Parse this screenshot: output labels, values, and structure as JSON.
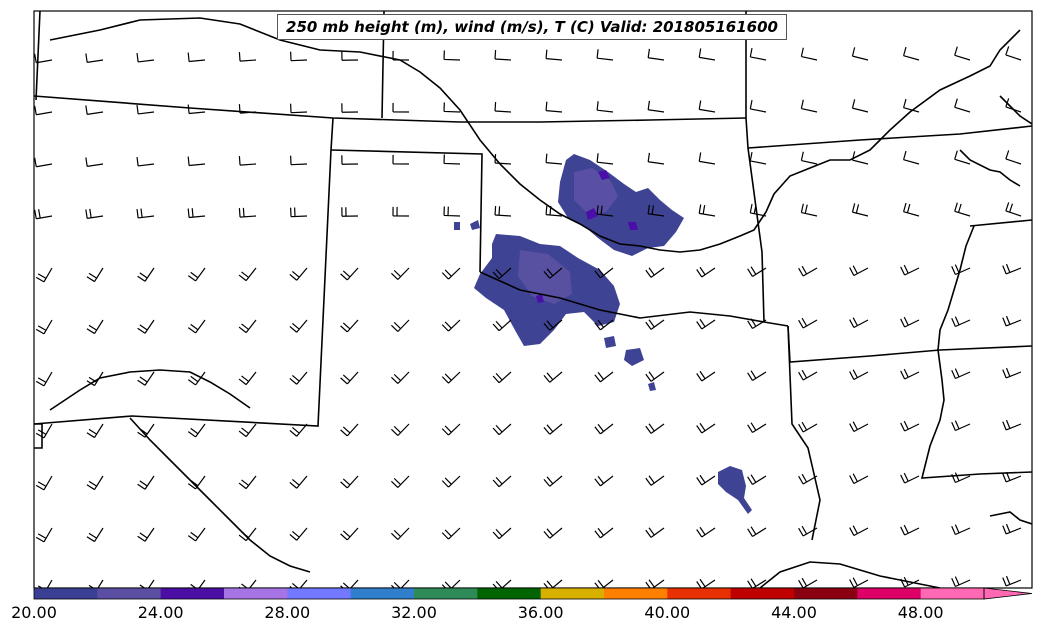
{
  "title": "250 mb height (m), wind (m/s), T (C) Valid: 201805161600",
  "colorbar": {
    "colors": [
      "#3a3f94",
      "#5b4fa3",
      "#4b0fa6",
      "#a774e6",
      "#7278ff",
      "#2f7fcc",
      "#2e8b57",
      "#006400",
      "#d8b000",
      "#ff8000",
      "#e83000",
      "#c00000",
      "#8b0010",
      "#dd0066",
      "#ff69b4"
    ],
    "tick_labels": [
      "20.00",
      "24.00",
      "28.00",
      "32.00",
      "36.00",
      "40.00",
      "44.00",
      "48.00"
    ],
    "min": 20,
    "max": 50,
    "step": 2,
    "extend": "max"
  },
  "colors": {
    "border": "#000000",
    "shading_main": "#3f4394",
    "shading_light": "#6254a6",
    "shading_dark": "#4a0fa8"
  }
}
